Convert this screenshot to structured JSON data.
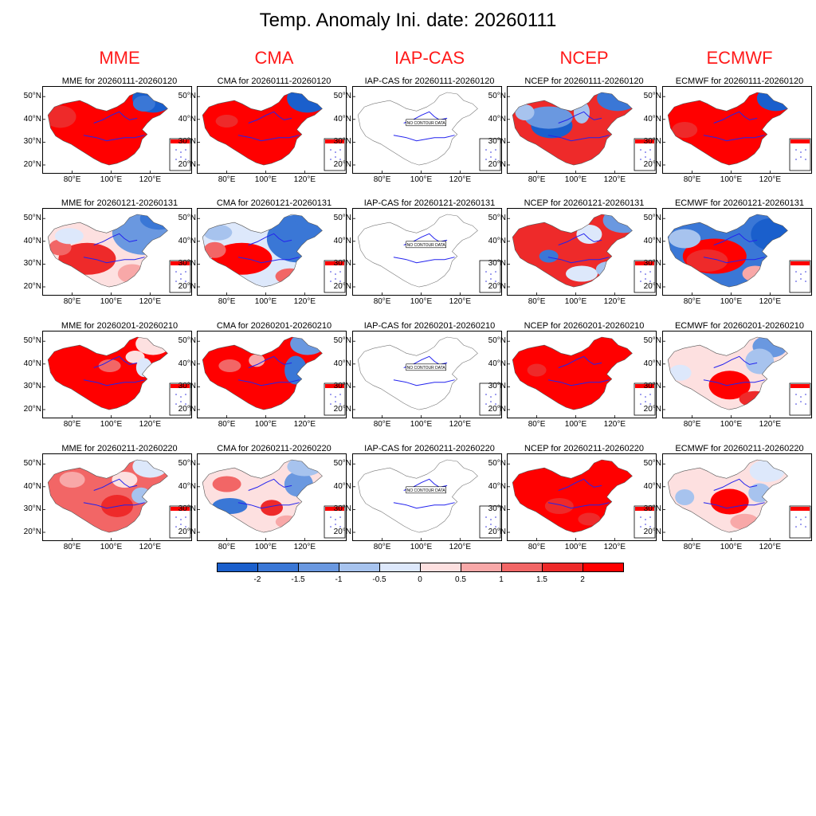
{
  "title": "Temp. Anomaly Ini. date: 20260111",
  "models": [
    "MME",
    "CMA",
    "IAP-CAS",
    "NCEP",
    "ECMWF"
  ],
  "periods": [
    "20260111-20260120",
    "20260121-20260131",
    "20260201-20260210",
    "20260211-20260220"
  ],
  "panel_title_template": "{model} for {period}",
  "lat_labels": [
    "50°N",
    "40°N",
    "30°N",
    "20°N"
  ],
  "lon_labels": [
    "80°E",
    "100°E",
    "120°E"
  ],
  "no_data_text": "NO CONTOUR DATA",
  "colorbar": {
    "labels": [
      "-2",
      "-1.5",
      "-1",
      "-0.5",
      "0",
      "0.5",
      "1",
      "1.5",
      "2"
    ],
    "colors": [
      "#1a5fcc",
      "#3a77d6",
      "#6a98e0",
      "#a7c3ee",
      "#dde8fb",
      "#fde0e0",
      "#f8a8a8",
      "#f26666",
      "#ee2a2a",
      "#ff0000"
    ]
  },
  "anomaly_patterns": {
    "MME": [
      [
        "hot",
        "west_hot",
        "ne_cold"
      ],
      [
        "mixed_blue_ne",
        "west_hot"
      ],
      [
        "hot",
        "ne_light"
      ],
      [
        "mixed_red",
        "ne_light"
      ]
    ],
    "CMA": [
      [
        "hot",
        "west_hot",
        "ne_cold"
      ],
      [
        "blue_ne",
        "west_hot"
      ],
      [
        "hot",
        "ne_cold"
      ],
      [
        "mixed",
        "ne_cold"
      ]
    ],
    "IAP-CAS": [
      [
        "none"
      ],
      [
        "none"
      ],
      [
        "none"
      ],
      [
        "none"
      ]
    ],
    "NCEP": [
      [
        "ne_cold",
        "west_cold"
      ],
      [
        "hot",
        "ne_cold"
      ],
      [
        "hot"
      ],
      [
        "hot"
      ]
    ],
    "ECMWF": [
      [
        "hot",
        "ne_cold"
      ],
      [
        "blue_north",
        "central_hot"
      ],
      [
        "light",
        "central_hot"
      ],
      [
        "light",
        "central_hot"
      ]
    ]
  }
}
